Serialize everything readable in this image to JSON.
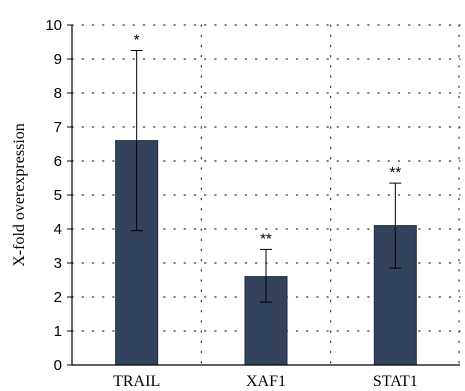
{
  "chart_data": {
    "type": "bar",
    "categories": [
      "TRAIL",
      "XAF1",
      "STAT1"
    ],
    "values": [
      6.6,
      2.6,
      4.1
    ],
    "error_low": [
      3.95,
      1.85,
      2.85
    ],
    "error_high": [
      9.25,
      3.4,
      5.35
    ],
    "annotations": [
      "*",
      "**",
      "**"
    ],
    "xlabel": "",
    "ylabel": "X-fold overexpression",
    "ylim": [
      0,
      10
    ],
    "yticks": [
      "0",
      "1",
      "2",
      "3",
      "4",
      "5",
      "6",
      "7",
      "8",
      "9",
      "10"
    ],
    "grid": "dotted",
    "bar_color": "#34435d"
  }
}
